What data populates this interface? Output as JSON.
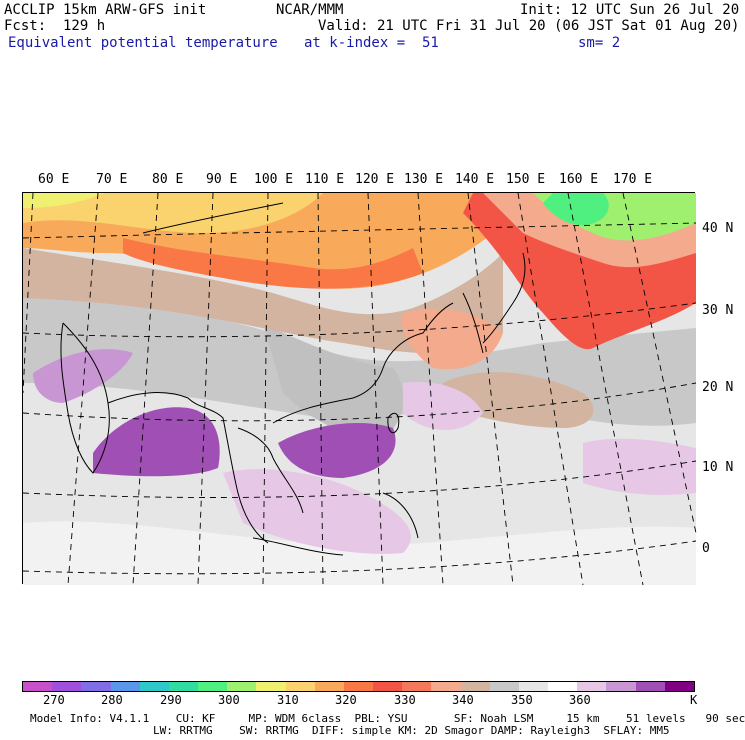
{
  "header": {
    "model": "ACCLIP 15km ARW-GFS init",
    "center": "NCAR/MMM",
    "init": "Init: 12 UTC Sun 26 Jul 20",
    "fcst": "Fcst:  129 h",
    "valid": "Valid: 21 UTC Fri 31 Jul 20 (06 JST Sat 01 Aug 20)",
    "field": "Equivalent potential temperature",
    "level": "at k-index =  51",
    "smooth": "sm= 2"
  },
  "map": {
    "lon_labels": [
      "60 E",
      "70 E",
      "80 E",
      "90 E",
      "100 E",
      "110 E",
      "120 E",
      "130 E",
      "140 E",
      "150 E",
      "160 E",
      "170 E"
    ],
    "lat_labels": [
      "40 N",
      "30 N",
      "20 N",
      "10 N",
      "0"
    ]
  },
  "colorbar": {
    "colors": [
      "#c850c8",
      "#a050dc",
      "#7f6ee6",
      "#5a96ec",
      "#2ec8c8",
      "#30dca0",
      "#50f080",
      "#a0f070",
      "#f0f070",
      "#fad26e",
      "#f8aa5a",
      "#fa7846",
      "#f25546",
      "#f4785a",
      "#f4aa8c",
      "#d2b4a0",
      "#c8c8c8",
      "#e6e6e6",
      "#ffffff",
      "#e6c8e6",
      "#c896d2",
      "#a050b4",
      "#820082"
    ],
    "labels": [
      "270",
      "280",
      "290",
      "300",
      "310",
      "320",
      "330",
      "340",
      "350",
      "360"
    ],
    "unit": "K"
  },
  "footer": {
    "line1": "Model Info: V4.1.1    CU: KF     MP: WDM 6class  PBL: YSU       SF: Noah LSM     15 km    51 levels   90 sec",
    "line2": "LW: RRTMG    SW: RRTMG  DIFF: simple KM: 2D Smagor DAMP: Rayleigh3  SFLAY: MM5"
  }
}
